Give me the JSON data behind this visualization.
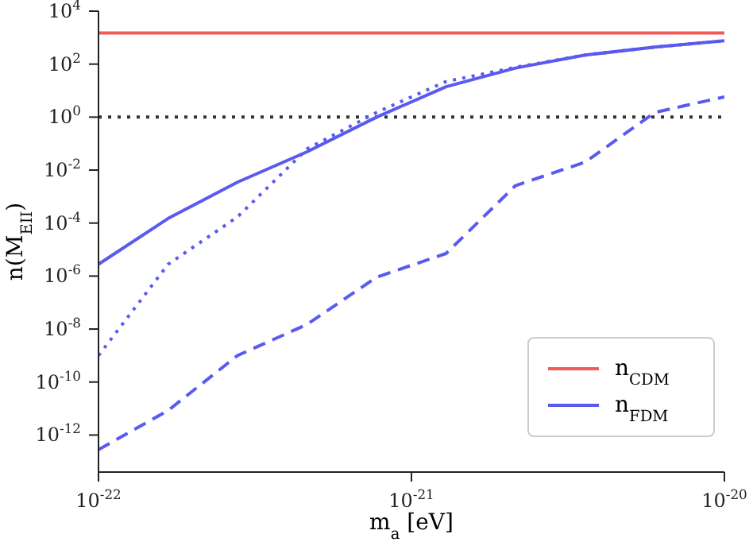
{
  "chart_data": {
    "type": "line",
    "xlabel": "m$_{a}$ [eV]",
    "ylabel": "n(M$_{EII}$)",
    "log": "xy",
    "grid": false,
    "legend": "bottom right",
    "marker": "none",
    "x": [
      1e-22,
      1.67e-22,
      2.78e-22,
      4.64e-22,
      7.74e-22,
      1.29e-21,
      2.15e-21,
      3.59e-21,
      5.99e-21,
      1e-20
    ],
    "xlim": [
      1e-22,
      1e-20
    ],
    "xticks": [
      {
        "value": 1e-22,
        "label": "10$^{-22}$"
      },
      {
        "value": 1e-21,
        "label": "10$^{-21}$"
      },
      {
        "value": 1e-20,
        "label": "10$^{-20}$"
      }
    ],
    "ylim": [
      4e-14,
      10000.0
    ],
    "yticks": [
      {
        "value": 1e-12,
        "label": "10$^{-12}$"
      },
      {
        "value": 1e-10,
        "label": "10$^{-10}$"
      },
      {
        "value": 1e-08,
        "label": "10$^{-8}$"
      },
      {
        "value": 1e-06,
        "label": "10$^{-6}$"
      },
      {
        "value": 0.0001,
        "label": "10$^{-4}$"
      },
      {
        "value": 0.01,
        "label": "10$^{-2}$"
      },
      {
        "value": 1,
        "label": "10$^{0}$"
      },
      {
        "value": 100,
        "label": "10$^{2}$"
      },
      {
        "value": 10000,
        "label": "10$^{4}$"
      }
    ],
    "ref_lines": [
      {
        "axis": "y",
        "value": 1,
        "color": "#333333",
        "line_style": "dotted"
      }
    ],
    "series": [
      {
        "name": "n$_{CDM}$",
        "color": "#f25a5a",
        "line_style": "solid",
        "x": [
          1e-22,
          1e-20
        ],
        "values": [
          1500,
          1500
        ]
      },
      {
        "name": "n$_{FDM}$",
        "color": "#5a5af0",
        "line_style": "solid",
        "values": [
          2.8e-06,
          0.00015,
          0.0035,
          0.049,
          1.0,
          14,
          71,
          220,
          440,
          760
        ]
      },
      {
        "color": "#5a5af0",
        "line_style": "dotted",
        "values": [
          1e-09,
          2.8e-06,
          0.00017,
          0.063,
          1.5,
          22,
          76,
          220,
          440,
          760
        ]
      },
      {
        "color": "#5a5af0",
        "line_style": "dashed",
        "values": [
          2.8e-13,
          8.5e-12,
          1e-09,
          1.5e-08,
          9.1e-07,
          7.1e-06,
          0.0026,
          0.02,
          1.5,
          5.8
        ]
      }
    ]
  }
}
